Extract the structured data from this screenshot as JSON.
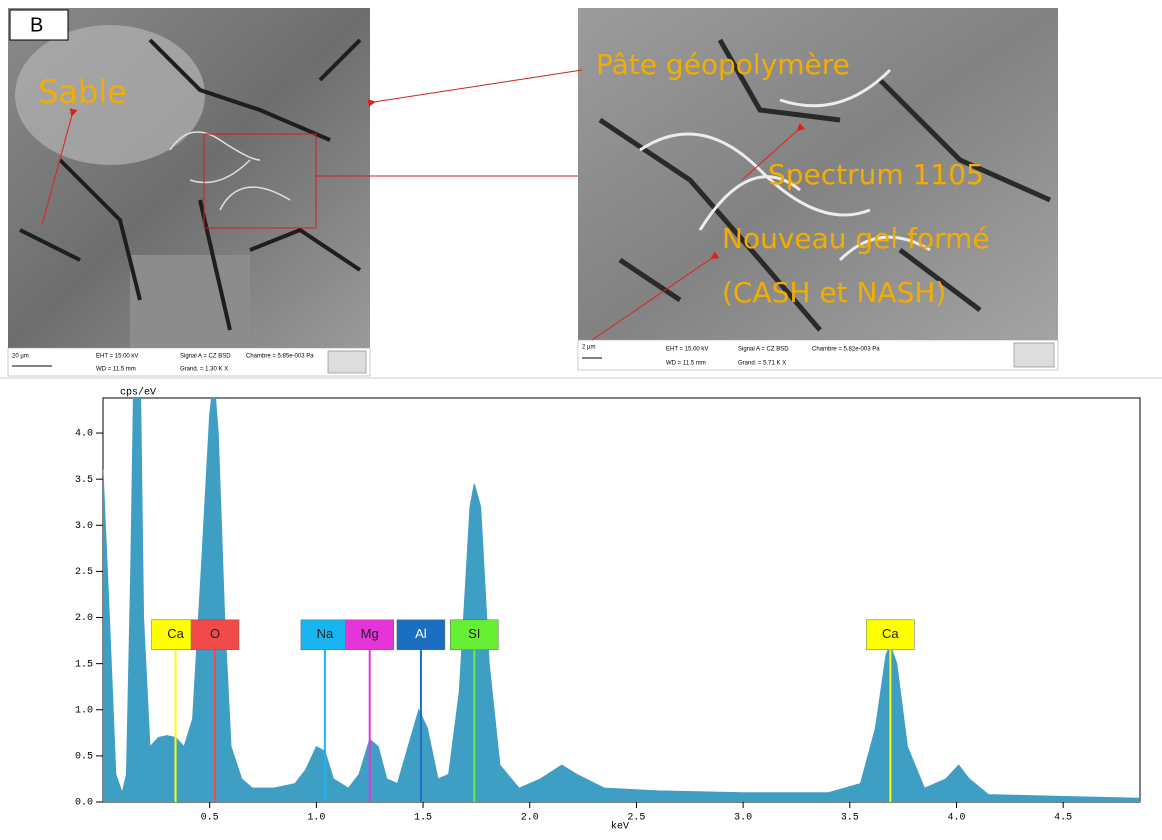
{
  "sem": {
    "panel": "B",
    "left": {
      "annotation": "Sable",
      "scale": "20 µm",
      "eht": "EHT = 15.00 kV",
      "signal": "Signal A = CZ BSD",
      "chamber": "Chambre = 5.85e-003 Pa",
      "wd": "WD = 11.5 mm",
      "mag": "Grand. = 1.30 K X"
    },
    "right": {
      "annotations": [
        "Pâte géopolymère",
        "Spectrum 1105",
        "Nouveau gel formé",
        "(CASH et NASH)"
      ],
      "scale": "2 µm",
      "eht": "EHT = 15.00 kV",
      "signal": "Signal A = CZ BSD",
      "chamber": "Chambre = 5.82e-003 Pa",
      "wd": "WD = 11.5 mm",
      "mag": "Grand. = 5.71 K X"
    }
  },
  "chart_data": {
    "type": "area",
    "y_label": "cps/eV",
    "x_label": "keV",
    "xlim": [
      0,
      4.86
    ],
    "ylim": [
      0,
      4.38
    ],
    "xticks": [
      0.5,
      {
        "value": 1,
        "label": "1.0"
      },
      1.5,
      {
        "value": 2,
        "label": "2.0"
      },
      2.5,
      {
        "value": 3,
        "label": "3.0"
      },
      3.5,
      {
        "value": 4,
        "label": "4.0"
      },
      4.5
    ],
    "yticks": [
      {
        "value": 0,
        "label": "0.0"
      },
      0.5,
      {
        "value": 1,
        "label": "1.0"
      },
      1.5,
      {
        "value": 2,
        "label": "2.0"
      },
      2.5,
      {
        "value": 3,
        "label": "3.0"
      },
      3.5,
      {
        "value": 4,
        "label": "4.0"
      }
    ],
    "series": [
      {
        "name": "Spectrum 1105",
        "color": "#3f9ec4",
        "x": [
          0,
          0.03,
          0.06,
          0.09,
          0.11,
          0.13,
          0.15,
          0.17,
          0.19,
          0.22,
          0.26,
          0.3,
          0.34,
          0.38,
          0.42,
          0.46,
          0.5,
          0.52,
          0.54,
          0.57,
          0.6,
          0.65,
          0.7,
          0.8,
          0.9,
          0.95,
          1,
          1.04,
          1.08,
          1.15,
          1.2,
          1.25,
          1.29,
          1.33,
          1.38,
          1.43,
          1.48,
          1.52,
          1.57,
          1.62,
          1.67,
          1.72,
          1.74,
          1.77,
          1.81,
          1.86,
          1.95,
          2.05,
          2.15,
          2.22,
          2.35,
          2.6,
          3,
          3.4,
          3.55,
          3.62,
          3.67,
          3.69,
          3.72,
          3.77,
          3.85,
          3.95,
          4.01,
          4.06,
          4.15,
          4.5,
          4.86
        ],
        "values": [
          3.6,
          2.0,
          0.3,
          0.1,
          0.3,
          2.5,
          5.5,
          5.5,
          2.0,
          0.6,
          0.7,
          0.72,
          0.7,
          0.6,
          0.9,
          2.5,
          4.2,
          4.6,
          4.0,
          2.0,
          0.6,
          0.25,
          0.15,
          0.15,
          0.2,
          0.35,
          0.6,
          0.55,
          0.25,
          0.15,
          0.3,
          0.68,
          0.6,
          0.25,
          0.2,
          0.6,
          1.0,
          0.8,
          0.25,
          0.3,
          1.2,
          3.2,
          3.45,
          3.2,
          1.5,
          0.4,
          0.15,
          0.25,
          0.4,
          0.3,
          0.15,
          0.12,
          0.1,
          0.1,
          0.2,
          0.8,
          1.6,
          1.7,
          1.5,
          0.6,
          0.15,
          0.25,
          0.4,
          0.25,
          0.08,
          0.06,
          0.04
        ]
      }
    ],
    "markers": [
      {
        "label": "Ca",
        "x": 0.34,
        "color": "#ffff00"
      },
      {
        "label": "O",
        "x": 0.525,
        "color": "#f04a4a"
      },
      {
        "label": "Na",
        "x": 1.04,
        "color": "#19b5f0"
      },
      {
        "label": "Mg",
        "x": 1.25,
        "color": "#e535d8"
      },
      {
        "label": "Al",
        "x": 1.49,
        "color": "#1a6fc0"
      },
      {
        "label": "SI",
        "x": 1.74,
        "color": "#66ee33"
      },
      {
        "label": "Ca",
        "x": 3.69,
        "color": "#ffff00"
      }
    ]
  }
}
